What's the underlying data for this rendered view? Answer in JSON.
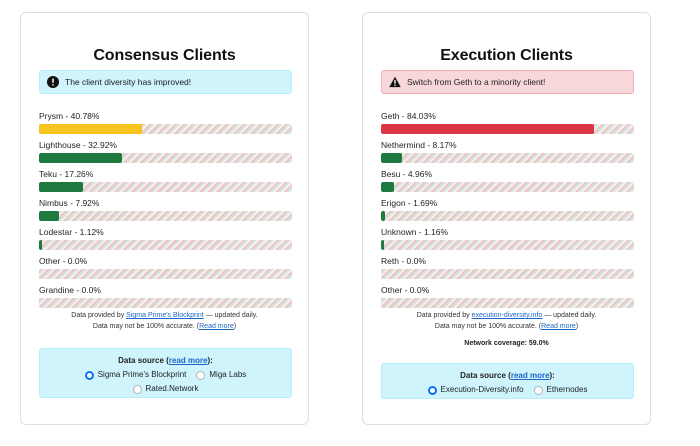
{
  "consensus": {
    "title": "Consensus Clients",
    "alert": {
      "text": "The client diversity has improved!",
      "icon": "exclamation-circle-icon"
    },
    "clients": [
      {
        "label": "Prysm - 40.78%",
        "percent": 40.78,
        "color": "#f7c31e"
      },
      {
        "label": "Lighthouse - 32.92%",
        "percent": 32.92,
        "color": "#1f7a3f"
      },
      {
        "label": "Teku - 17.26%",
        "percent": 17.26,
        "color": "#1f7a3f"
      },
      {
        "label": "Nimbus - 7.92%",
        "percent": 7.92,
        "color": "#1f7a3f"
      },
      {
        "label": "Lodestar - 1.12%",
        "percent": 1.12,
        "color": "#1f7a3f"
      },
      {
        "label": "Other - 0.0%",
        "percent": 0.0,
        "color": "#1f7a3f"
      },
      {
        "label": "Grandine - 0.0%",
        "percent": 0.0,
        "color": "#1f7a3f"
      }
    ],
    "footnote": {
      "prefix": "Data provided by ",
      "link": "Sigma Prime's Blockprint",
      "suffix": " — updated daily.",
      "line2_prefix": "Data may not be 100% accurate. (",
      "line2_link": "Read more",
      "line2_suffix": ")"
    },
    "datasource": {
      "title_prefix": "Data source (",
      "title_link": "read more",
      "title_suffix": "):",
      "options": [
        {
          "label": "Sigma Prime's Blockprint",
          "checked": true
        },
        {
          "label": "Miga Labs",
          "checked": false
        },
        {
          "label": "Rated.Network",
          "checked": false
        }
      ]
    }
  },
  "execution": {
    "title": "Execution Clients",
    "alert": {
      "text": "Switch from Geth to a minority client!",
      "icon": "warning-triangle-icon"
    },
    "clients": [
      {
        "label": "Geth - 84.03%",
        "percent": 84.03,
        "color": "#dc3545"
      },
      {
        "label": "Nethermind - 8.17%",
        "percent": 8.17,
        "color": "#1f7a3f"
      },
      {
        "label": "Besu - 4.96%",
        "percent": 4.96,
        "color": "#1f7a3f"
      },
      {
        "label": "Erigon - 1.69%",
        "percent": 1.69,
        "color": "#1f7a3f"
      },
      {
        "label": "Unknown - 1.16%",
        "percent": 1.16,
        "color": "#1f7a3f"
      },
      {
        "label": "Reth - 0.0%",
        "percent": 0.0,
        "color": "#1f7a3f"
      },
      {
        "label": "Other - 0.0%",
        "percent": 0.0,
        "color": "#1f7a3f"
      }
    ],
    "footnote": {
      "prefix": "Data provided by ",
      "link": "execution-diversity.info",
      "suffix": " — updated daily.",
      "line2_prefix": "Data may not be 100% accurate. (",
      "line2_link": "Read more",
      "line2_suffix": ")"
    },
    "coverage": "Network coverage: 59.0%",
    "datasource": {
      "title_prefix": "Data source (",
      "title_link": "read more",
      "title_suffix": "):",
      "options": [
        {
          "label": "Execution-Diversity.info",
          "checked": true
        },
        {
          "label": "Ethernodes",
          "checked": false
        }
      ]
    }
  }
}
